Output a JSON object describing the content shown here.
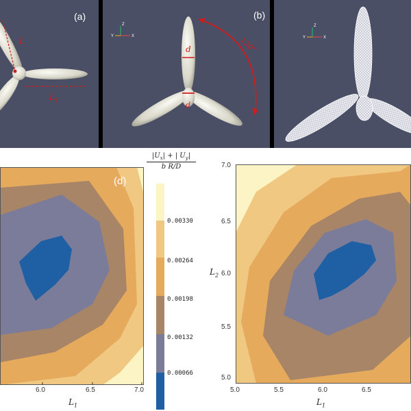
{
  "panels": {
    "a": {
      "label": "(a)",
      "L2": "L",
      "L1": "L",
      "L1_sub": "1"
    },
    "b": {
      "label": "(b)",
      "d_top": "d",
      "d_center": "d",
      "angle": "120°",
      "axes": {
        "z": "Z",
        "y": "Y",
        "x": "X"
      }
    },
    "c": {
      "axes": {
        "z": "Z",
        "y": "Y",
        "x": "X"
      }
    },
    "d": {
      "label": "(d)"
    }
  },
  "colorbar": {
    "numerator": "|U",
    "num_sub_x": "x",
    "num_mid": "| + | U",
    "num_sub_y": "y",
    "num_end": "|",
    "denominator": "b R/D",
    "ticks": [
      "0.00330",
      "0.00264",
      "0.00198",
      "0.00132",
      "0.00066"
    ],
    "colors": [
      "#fdf4c6",
      "#f0c882",
      "#e6aa5c",
      "#a88566",
      "#7b7c99",
      "#1f5fa3"
    ]
  },
  "chart_data": [
    {
      "type": "heatmap",
      "panel": "d",
      "xlabel": "L",
      "xlabel_sub": "1",
      "xticks": [
        "6.0",
        "6.5",
        "7.0"
      ],
      "x_range": [
        5.0,
        7.0
      ],
      "levels": [
        0.00066,
        0.00132,
        0.00198,
        0.00264,
        0.0033
      ]
    },
    {
      "type": "heatmap",
      "panel": "e",
      "xlabel": "L",
      "xlabel_sub": "1",
      "ylabel": "L",
      "ylabel_sub": "2",
      "xticks": [
        "5.0",
        "5.5",
        "6.0",
        "6.5"
      ],
      "yticks": [
        "7.0",
        "6.5",
        "6.0",
        "5.5",
        "5.0"
      ],
      "x_range": [
        5.0,
        7.0
      ],
      "y_range": [
        5.0,
        7.0
      ],
      "levels": [
        0.00066,
        0.00132,
        0.00198,
        0.00264,
        0.0033
      ]
    }
  ]
}
